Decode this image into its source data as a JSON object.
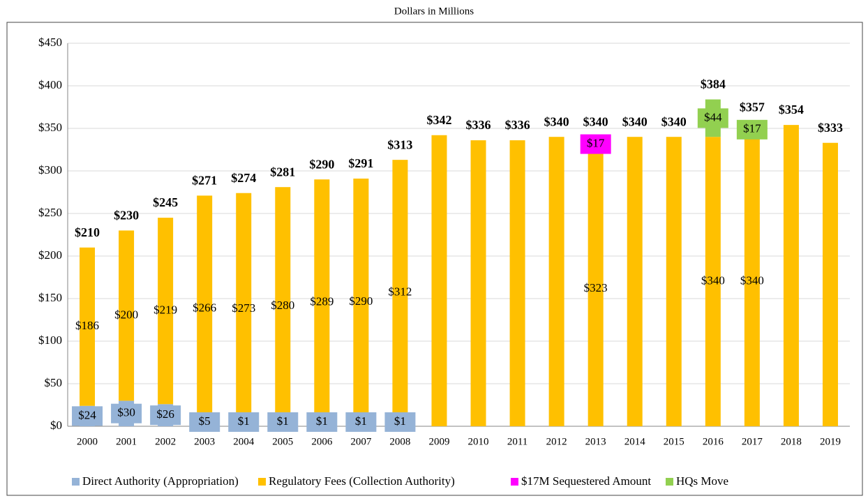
{
  "chart_data": {
    "type": "stacked_bar",
    "title": "Dollars in Millions",
    "categories": [
      "2000",
      "2001",
      "2002",
      "2003",
      "2004",
      "2005",
      "2006",
      "2007",
      "2008",
      "2009",
      "2010",
      "2011",
      "2012",
      "2013",
      "2014",
      "2015",
      "2016",
      "2017",
      "2018",
      "2019"
    ],
    "series": [
      {
        "name": "Direct Authority (Appropriation)",
        "color": "#95b3d7",
        "label_fill": true,
        "values": [
          24,
          30,
          26,
          5,
          1,
          1,
          1,
          1,
          1,
          null,
          null,
          null,
          null,
          null,
          null,
          null,
          null,
          null,
          null,
          null
        ],
        "value_labels": [
          "$24",
          "$30",
          "$26",
          "$5",
          "$1",
          "$1",
          "$1",
          "$1",
          "$1",
          null,
          null,
          null,
          null,
          null,
          null,
          null,
          null,
          null,
          null,
          null
        ]
      },
      {
        "name": "Regulatory Fees (Collection Authority)",
        "color": "#ffc000",
        "label_fill": false,
        "values": [
          186,
          200,
          219,
          266,
          273,
          280,
          289,
          290,
          312,
          342,
          336,
          336,
          340,
          323,
          340,
          340,
          340,
          340,
          354,
          333
        ],
        "value_labels": [
          "$186",
          "$200",
          "$219",
          "$266",
          "$273",
          "$280",
          "$289",
          "$290",
          "$312",
          null,
          null,
          null,
          null,
          "$323",
          null,
          null,
          "$340",
          "$340",
          null,
          null
        ]
      },
      {
        "name": "$17M Sequestered Amount",
        "color": "#ff00ff",
        "label_fill": true,
        "values": [
          null,
          null,
          null,
          null,
          null,
          null,
          null,
          null,
          null,
          null,
          null,
          null,
          null,
          17,
          null,
          null,
          null,
          null,
          null,
          null
        ],
        "value_labels": [
          null,
          null,
          null,
          null,
          null,
          null,
          null,
          null,
          null,
          null,
          null,
          null,
          null,
          "$17",
          null,
          null,
          null,
          null,
          null,
          null
        ]
      },
      {
        "name": "HQs Move",
        "color": "#92d050",
        "label_fill": true,
        "values": [
          null,
          null,
          null,
          null,
          null,
          null,
          null,
          null,
          null,
          null,
          null,
          null,
          null,
          null,
          null,
          null,
          44,
          17,
          null,
          null
        ],
        "value_labels": [
          null,
          null,
          null,
          null,
          null,
          null,
          null,
          null,
          null,
          null,
          null,
          null,
          null,
          null,
          null,
          null,
          "$44",
          "$17",
          null,
          null
        ]
      }
    ],
    "totals": [
      210,
      230,
      245,
      271,
      274,
      281,
      290,
      291,
      313,
      342,
      336,
      336,
      340,
      340,
      340,
      340,
      384,
      357,
      354,
      333
    ],
    "totals_labels": [
      "$210",
      "$230",
      "$245",
      "$271",
      "$274",
      "$281",
      "$290",
      "$291",
      "$313",
      "$342",
      "$336",
      "$336",
      "$340",
      "$340",
      "$340",
      "$340",
      "$384",
      "$357",
      "$354",
      "$333"
    ],
    "ylim": [
      0,
      450
    ],
    "yticks": [
      {
        "value": 0,
        "label": "$0"
      },
      {
        "value": 50,
        "label": "$50"
      },
      {
        "value": 100,
        "label": "$100"
      },
      {
        "value": 150,
        "label": "$150"
      },
      {
        "value": 200,
        "label": "$200"
      },
      {
        "value": 250,
        "label": "$250"
      },
      {
        "value": 300,
        "label": "$300"
      },
      {
        "value": 350,
        "label": "$350"
      },
      {
        "value": 400,
        "label": "$400"
      },
      {
        "value": 450,
        "label": "$450"
      }
    ],
    "grid": true,
    "legend": "bottom"
  }
}
